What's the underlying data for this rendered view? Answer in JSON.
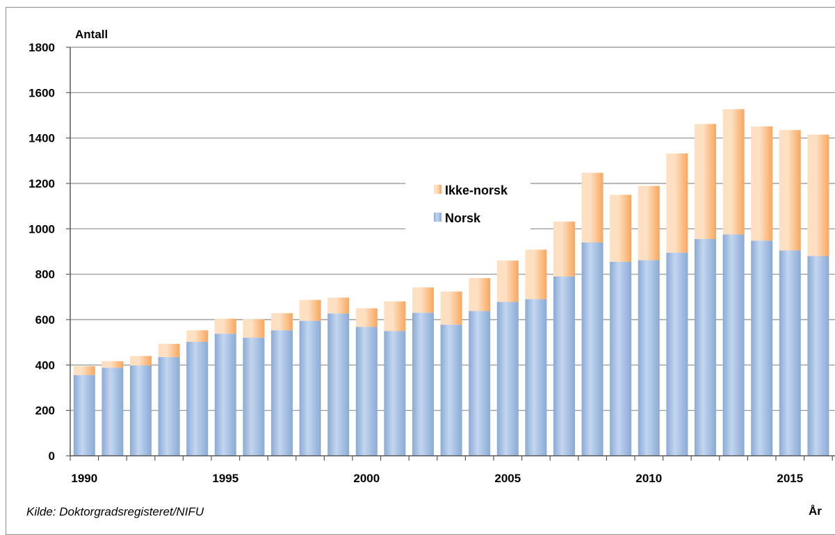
{
  "source_note": "Kilde:  Doktorgradsregisteret/NIFU",
  "colors": {
    "norsk": "#8aaad6",
    "norsk_light": "#c3d6ef",
    "ikke_norsk": "#f8a75e",
    "ikke_norsk_light": "#fde0c2",
    "gridline": "#8c8c8c"
  },
  "chart_data": {
    "type": "bar",
    "stacked": true,
    "ylabel": "Antall",
    "xlabel": "År",
    "ylim": [
      0,
      1800
    ],
    "yticks": [
      0,
      200,
      400,
      600,
      800,
      1000,
      1200,
      1400,
      1600,
      1800
    ],
    "xtick_labels": [
      "1990",
      "1995",
      "2000",
      "2005",
      "2010",
      "2015"
    ],
    "grid": true,
    "legend_position": "center-left",
    "categories": [
      1990,
      1991,
      1992,
      1993,
      1994,
      1995,
      1996,
      1997,
      1998,
      1999,
      2000,
      2001,
      2002,
      2003,
      2004,
      2005,
      2006,
      2007,
      2008,
      2009,
      2010,
      2011,
      2012,
      2013,
      2014,
      2015,
      2016
    ],
    "series": [
      {
        "name": "Norsk",
        "values": [
          356,
          388,
          398,
          435,
          502,
          538,
          521,
          553,
          595,
          627,
          568,
          550,
          630,
          578,
          638,
          678,
          690,
          790,
          940,
          855,
          862,
          895,
          955,
          975,
          948,
          905,
          880
        ]
      },
      {
        "name": "Ikke-norsk",
        "values": [
          39,
          29,
          42,
          58,
          51,
          66,
          81,
          75,
          92,
          70,
          82,
          130,
          112,
          146,
          145,
          182,
          218,
          242,
          307,
          295,
          327,
          437,
          507,
          552,
          503,
          530,
          535
        ]
      }
    ],
    "legend": [
      "Ikke-norsk",
      "Norsk"
    ]
  }
}
